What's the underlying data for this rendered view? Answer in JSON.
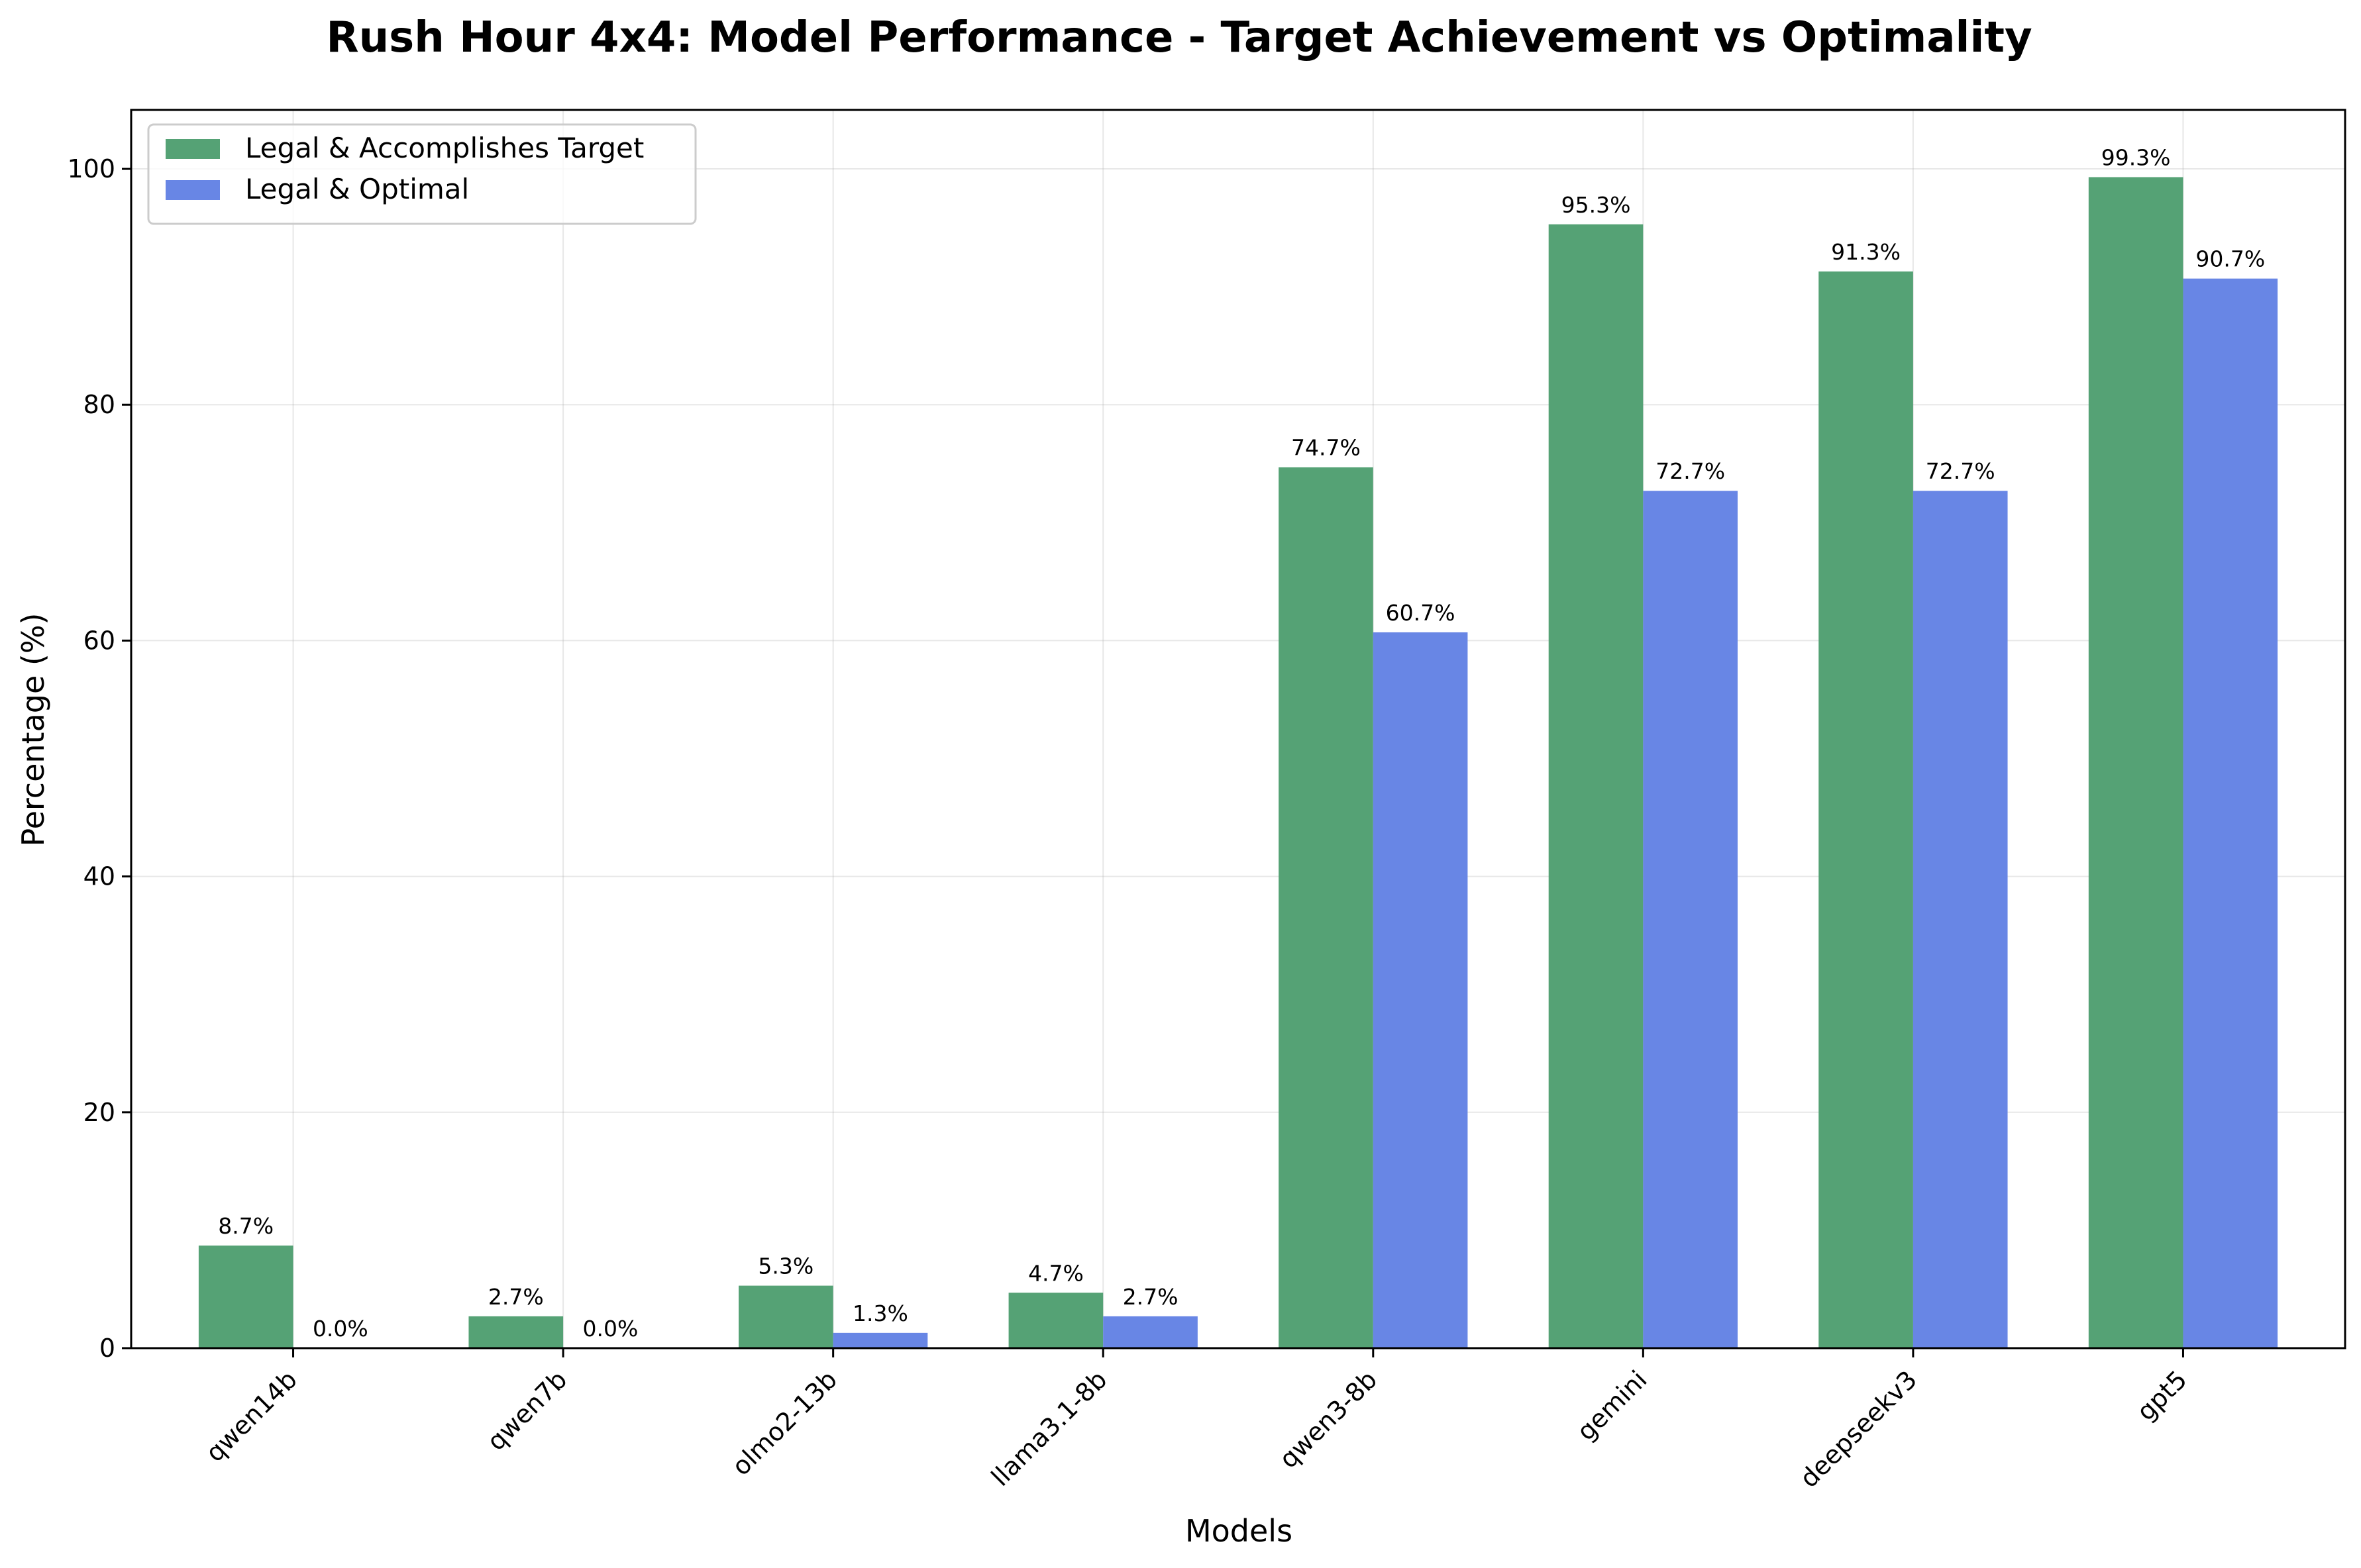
{
  "chart_data": {
    "type": "bar",
    "title": "Rush Hour 4x4: Model Performance - Target Achievement vs Optimality",
    "xlabel": "Models",
    "ylabel": "Percentage (%)",
    "ylim": [
      0,
      105
    ],
    "yticks": [
      0,
      20,
      40,
      60,
      80,
      100
    ],
    "grid": true,
    "legend_position": "upper-left",
    "categories": [
      "qwen14b",
      "qwen7b",
      "olmo2-13b",
      "llama3.1-8b",
      "qwen3-8b",
      "gemini",
      "deepseekv3",
      "gpt5"
    ],
    "series": [
      {
        "name": "Legal & Accomplishes Target",
        "color": "#55a275",
        "values": [
          8.7,
          2.7,
          5.3,
          4.7,
          74.7,
          95.3,
          91.3,
          99.3
        ],
        "labels": [
          "8.7%",
          "2.7%",
          "5.3%",
          "4.7%",
          "74.7%",
          "95.3%",
          "91.3%",
          "99.3%"
        ]
      },
      {
        "name": "Legal & Optimal",
        "color": "#6886e5",
        "values": [
          0.0,
          0.0,
          1.3,
          2.7,
          60.7,
          72.7,
          72.7,
          90.7
        ],
        "labels": [
          "0.0%",
          "0.0%",
          "1.3%",
          "2.7%",
          "60.7%",
          "72.7%",
          "72.7%",
          "90.7%"
        ]
      }
    ]
  }
}
